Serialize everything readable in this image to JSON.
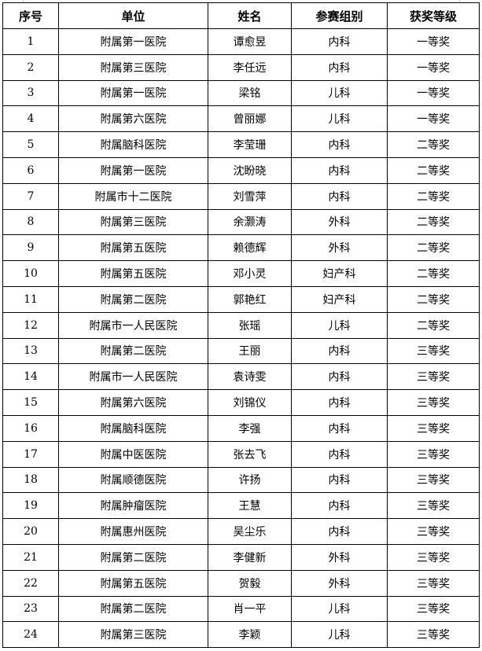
{
  "table": {
    "headers": [
      "序号",
      "单位",
      "姓名",
      "参赛组别",
      "获奖等级"
    ],
    "rows": [
      [
        "1",
        "附属第一医院",
        "谭愈昱",
        "内科",
        "一等奖"
      ],
      [
        "2",
        "附属第三医院",
        "李任远",
        "内科",
        "一等奖"
      ],
      [
        "3",
        "附属第一医院",
        "梁铭",
        "儿科",
        "一等奖"
      ],
      [
        "4",
        "附属第六医院",
        "曾丽娜",
        "儿科",
        "一等奖"
      ],
      [
        "5",
        "附属脑科医院",
        "李莹珊",
        "内科",
        "二等奖"
      ],
      [
        "6",
        "附属第一医院",
        "沈盼晓",
        "内科",
        "二等奖"
      ],
      [
        "7",
        "附属市十二医院",
        "刘雪萍",
        "内科",
        "二等奖"
      ],
      [
        "8",
        "附属第三医院",
        "余灏涛",
        "外科",
        "二等奖"
      ],
      [
        "9",
        "附属第五医院",
        "赖德辉",
        "外科",
        "二等奖"
      ],
      [
        "10",
        "附属第五医院",
        "邓小灵",
        "妇产科",
        "二等奖"
      ],
      [
        "11",
        "附属第二医院",
        "郭艳红",
        "妇产科",
        "二等奖"
      ],
      [
        "12",
        "附属市一人民医院",
        "张瑶",
        "儿科",
        "二等奖"
      ],
      [
        "13",
        "附属第二医院",
        "王丽",
        "内科",
        "三等奖"
      ],
      [
        "14",
        "附属市一人民医院",
        "袁诗雯",
        "内科",
        "三等奖"
      ],
      [
        "15",
        "附属第六医院",
        "刘锦仪",
        "内科",
        "三等奖"
      ],
      [
        "16",
        "附属脑科医院",
        "李强",
        "内科",
        "三等奖"
      ],
      [
        "17",
        "附属中医医院",
        "张去飞",
        "内科",
        "三等奖"
      ],
      [
        "18",
        "附属顺德医院",
        "许扬",
        "内科",
        "三等奖"
      ],
      [
        "19",
        "附属肿瘤医院",
        "王慧",
        "内科",
        "三等奖"
      ],
      [
        "20",
        "附属惠州医院",
        "吴尘乐",
        "内科",
        "三等奖"
      ],
      [
        "21",
        "附属第二医院",
        "李健新",
        "外科",
        "三等奖"
      ],
      [
        "22",
        "附属第五医院",
        "贺毅",
        "外科",
        "三等奖"
      ],
      [
        "23",
        "附属第二医院",
        "肖一平",
        "儿科",
        "三等奖"
      ],
      [
        "24",
        "附属第三医院",
        "李颖",
        "儿科",
        "三等奖"
      ]
    ]
  }
}
